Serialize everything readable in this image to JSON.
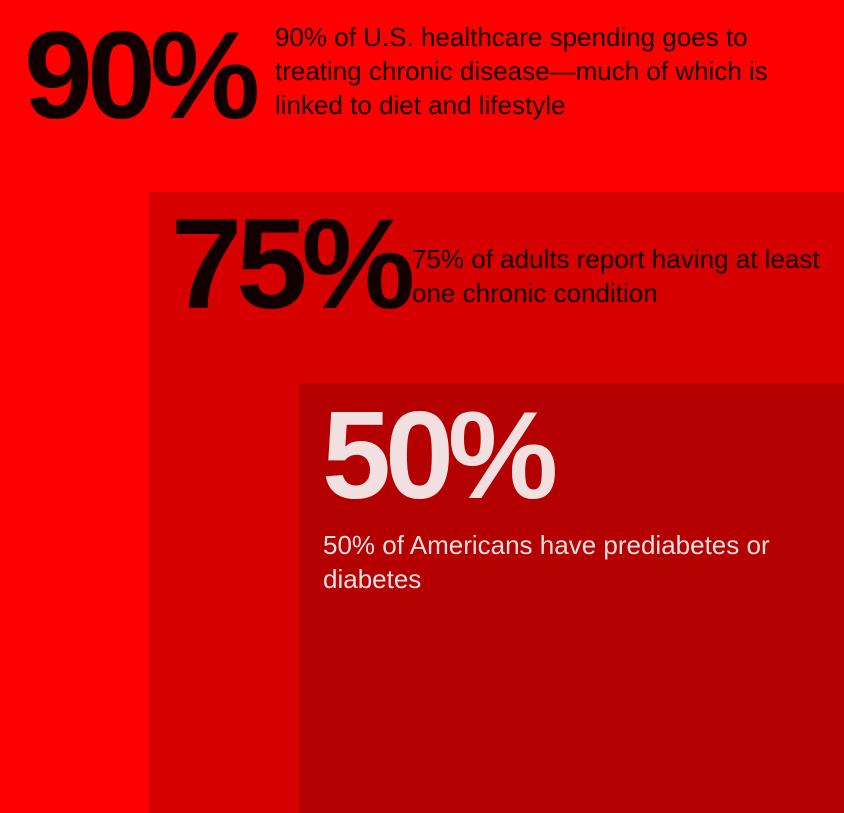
{
  "colors": {
    "outer": "#ff0000",
    "middle": "#d60000",
    "inner": "#b40000",
    "dark_text": "#120000",
    "light_text": "#f2e0e0"
  },
  "stats": [
    {
      "value": "90%",
      "text": "90% of U.S. healthcare spending goes to treating chronic disease—much of which is linked to diet and lifestyle"
    },
    {
      "value": "75%",
      "text": "75% of adults report having at least one chronic condition"
    },
    {
      "value": "50%",
      "text": "50% of Americans have prediabetes or diabetes"
    }
  ]
}
